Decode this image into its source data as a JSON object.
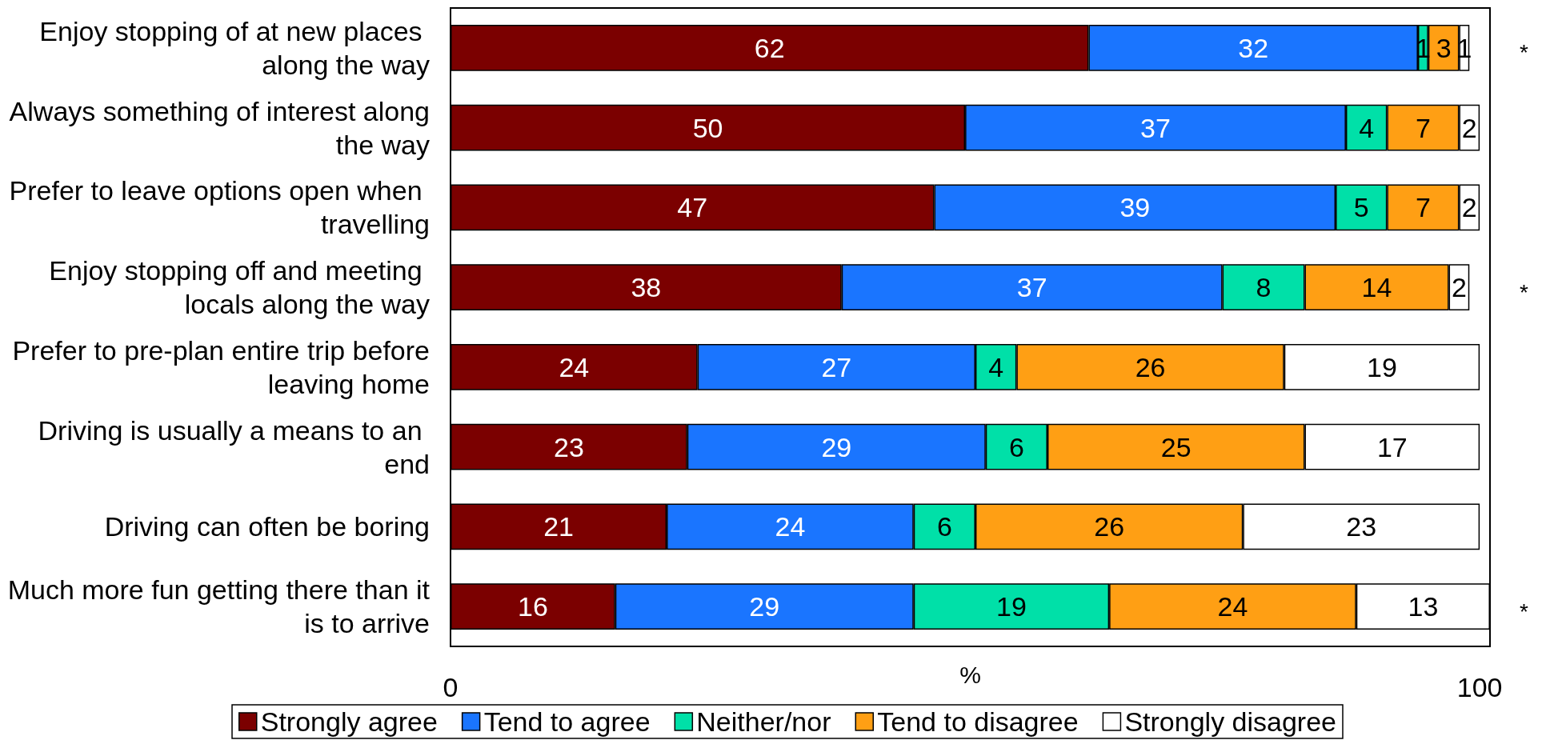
{
  "chart_data": {
    "type": "bar",
    "orientation": "horizontal",
    "stacked": true,
    "xlabel": "%",
    "categories": [
      "Enjoy stopping of at new places along the way",
      "Always something of interest along the way",
      "Prefer to leave options open when travelling",
      "Enjoy stopping off and meeting locals along the way",
      "Prefer to pre-plan entire trip before leaving home",
      "Driving is usually a means to an end",
      "Driving can often be boring",
      "Much more fun getting there than it is to arrive"
    ],
    "series": [
      {
        "name": "Strongly agree",
        "color": "#7b0000",
        "values": [
          62,
          50,
          47,
          38,
          24,
          23,
          21,
          16
        ]
      },
      {
        "name": "Tend to agree",
        "color": "#1a75ff",
        "values": [
          32,
          37,
          39,
          37,
          27,
          29,
          24,
          29
        ]
      },
      {
        "name": "Neither/nor",
        "color": "#00e0a8",
        "values": [
          1,
          4,
          5,
          8,
          4,
          6,
          6,
          19
        ]
      },
      {
        "name": "Tend to disagree",
        "color": "#ff9f14",
        "values": [
          3,
          7,
          7,
          14,
          26,
          25,
          26,
          24
        ]
      },
      {
        "name": "Strongly disagree",
        "color": "#ffffff",
        "values": [
          1,
          2,
          2,
          2,
          19,
          17,
          23,
          13
        ]
      }
    ],
    "xlim": [
      0,
      101
    ],
    "xticks": [
      0,
      100
    ],
    "data_labels": true,
    "grid": false,
    "legend": "bottom",
    "annotations": [
      "*",
      "*",
      "*"
    ]
  }
}
